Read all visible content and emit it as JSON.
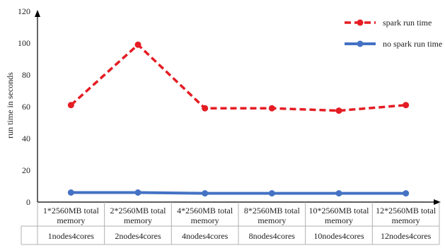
{
  "chart_data": {
    "type": "line",
    "title": "",
    "xlabel": "",
    "ylabel": "run time in seconds",
    "ylim": [
      0,
      120
    ],
    "yticks": [
      0,
      20,
      40,
      60,
      80,
      100,
      120
    ],
    "grid": false,
    "legend_position": "top-right",
    "categories": [
      {
        "line1": "1*2560MB total",
        "line2": "memory",
        "line3": "1nodes4cores"
      },
      {
        "line1": "2*2560MB total",
        "line2": "memory",
        "line3": "2nodes4cores"
      },
      {
        "line1": "4*2560MB total",
        "line2": "memory",
        "line3": "4nodes4cores"
      },
      {
        "line1": "8*2560MB total",
        "line2": "memory",
        "line3": "8nodes4cores"
      },
      {
        "line1": "10*2560MB total",
        "line2": "memory",
        "line3": "10nodes4cores"
      },
      {
        "line1": "12*2560MB total",
        "line2": "memory",
        "line3": "12nodes4cores"
      }
    ],
    "series": [
      {
        "name": "spark run time",
        "color": "#e51c23",
        "dashed": true,
        "values": [
          61,
          99,
          59,
          59,
          57.5,
          61
        ]
      },
      {
        "name": "no spark run time",
        "color": "#4472c4",
        "dashed": false,
        "values": [
          6,
          6,
          5.5,
          5.5,
          5.5,
          5.5
        ]
      }
    ]
  }
}
